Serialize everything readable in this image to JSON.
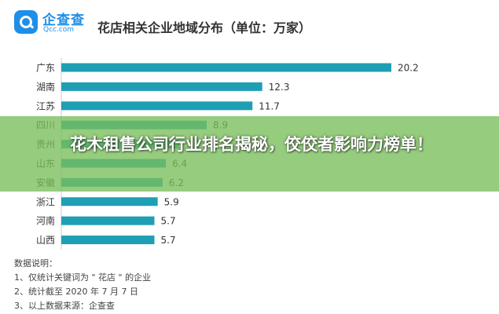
{
  "brand": {
    "name": "企查查",
    "domain": "Qcc.com"
  },
  "chart_data": {
    "type": "bar",
    "orientation": "horizontal",
    "title": "花店相关企业地域分布（单位：万家）",
    "categories": [
      "广东",
      "湖南",
      "江苏",
      "四川",
      "贵州",
      "山东",
      "安徽",
      "浙江",
      "河南",
      "山西"
    ],
    "values": [
      20.2,
      12.3,
      11.7,
      8.9,
      7.2,
      6.4,
      6.2,
      5.9,
      5.7,
      5.7
    ],
    "value_labels": [
      "20.2",
      "12.3",
      "11.7",
      "8.9",
      "7.2",
      "6.4",
      "6.2",
      "5.9",
      "5.7",
      "5.7"
    ],
    "xlim": [
      0,
      20.2
    ],
    "bar_color": "#1f9fb4",
    "grid": false
  },
  "banner": {
    "text": "花木租售公司行业排名揭秘，佼佼者影响力榜单！",
    "color": "#78be5a"
  },
  "notes": {
    "heading": "数据说明：",
    "lines": [
      "1、仅统计关键词为 \" 花店 \" 的企业",
      "2、统计截至 2020 年 7 月 7 日",
      "3、以上数据来源：企查查"
    ]
  }
}
